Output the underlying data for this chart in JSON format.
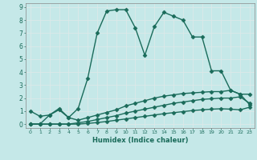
{
  "xlabel": "Humidex (Indice chaleur)",
  "ylabel": "",
  "background_color": "#c5e8e8",
  "grid_color": "#dce8e8",
  "line_color": "#1a6b5a",
  "xlim": [
    -0.5,
    23.5
  ],
  "ylim": [
    -0.3,
    9.3
  ],
  "xticks": [
    0,
    1,
    2,
    3,
    4,
    5,
    6,
    7,
    8,
    9,
    10,
    11,
    12,
    13,
    14,
    15,
    16,
    17,
    18,
    19,
    20,
    21,
    22,
    23
  ],
  "yticks": [
    0,
    1,
    2,
    3,
    4,
    5,
    6,
    7,
    8,
    9
  ],
  "series": [
    {
      "x": [
        0,
        1,
        2,
        3,
        4,
        5,
        6,
        7,
        8,
        9,
        10,
        11,
        12,
        13,
        14,
        15,
        16,
        17,
        18,
        19,
        20,
        21,
        22,
        23
      ],
      "y": [
        1.0,
        0.6,
        0.7,
        1.2,
        0.5,
        1.2,
        3.5,
        7.0,
        8.7,
        8.8,
        8.8,
        7.4,
        5.3,
        7.5,
        8.6,
        8.3,
        8.0,
        6.7,
        6.7,
        4.1,
        4.1,
        2.6,
        2.3,
        2.3
      ],
      "marker": "D",
      "markersize": 2.5,
      "linewidth": 1.0
    },
    {
      "x": [
        0,
        1,
        2,
        3,
        4,
        5,
        6,
        7,
        8,
        9,
        10,
        11,
        12,
        13,
        14,
        15,
        16,
        17,
        18,
        19,
        20,
        21,
        22,
        23
      ],
      "y": [
        0.0,
        0.0,
        0.7,
        1.1,
        0.5,
        0.3,
        0.5,
        0.7,
        0.9,
        1.1,
        1.4,
        1.6,
        1.8,
        2.0,
        2.15,
        2.25,
        2.35,
        2.4,
        2.45,
        2.5,
        2.5,
        2.6,
        2.3,
        1.5
      ],
      "marker": "D",
      "markersize": 2.5,
      "linewidth": 1.0
    },
    {
      "x": [
        0,
        1,
        2,
        3,
        4,
        5,
        6,
        7,
        8,
        9,
        10,
        11,
        12,
        13,
        14,
        15,
        16,
        17,
        18,
        19,
        20,
        21,
        22,
        23
      ],
      "y": [
        0.0,
        0.0,
        0.0,
        0.0,
        0.0,
        0.1,
        0.2,
        0.35,
        0.5,
        0.65,
        0.85,
        1.0,
        1.15,
        1.3,
        1.45,
        1.6,
        1.7,
        1.8,
        1.9,
        1.95,
        2.0,
        2.0,
        2.1,
        1.6
      ],
      "marker": "D",
      "markersize": 2.5,
      "linewidth": 1.0
    },
    {
      "x": [
        0,
        1,
        2,
        3,
        4,
        5,
        6,
        7,
        8,
        9,
        10,
        11,
        12,
        13,
        14,
        15,
        16,
        17,
        18,
        19,
        20,
        21,
        22,
        23
      ],
      "y": [
        0.0,
        0.0,
        0.0,
        0.0,
        0.0,
        0.0,
        0.05,
        0.12,
        0.2,
        0.3,
        0.4,
        0.5,
        0.6,
        0.7,
        0.8,
        0.88,
        0.96,
        1.04,
        1.1,
        1.15,
        1.18,
        1.15,
        1.1,
        1.3
      ],
      "marker": "D",
      "markersize": 2.5,
      "linewidth": 1.0
    }
  ]
}
